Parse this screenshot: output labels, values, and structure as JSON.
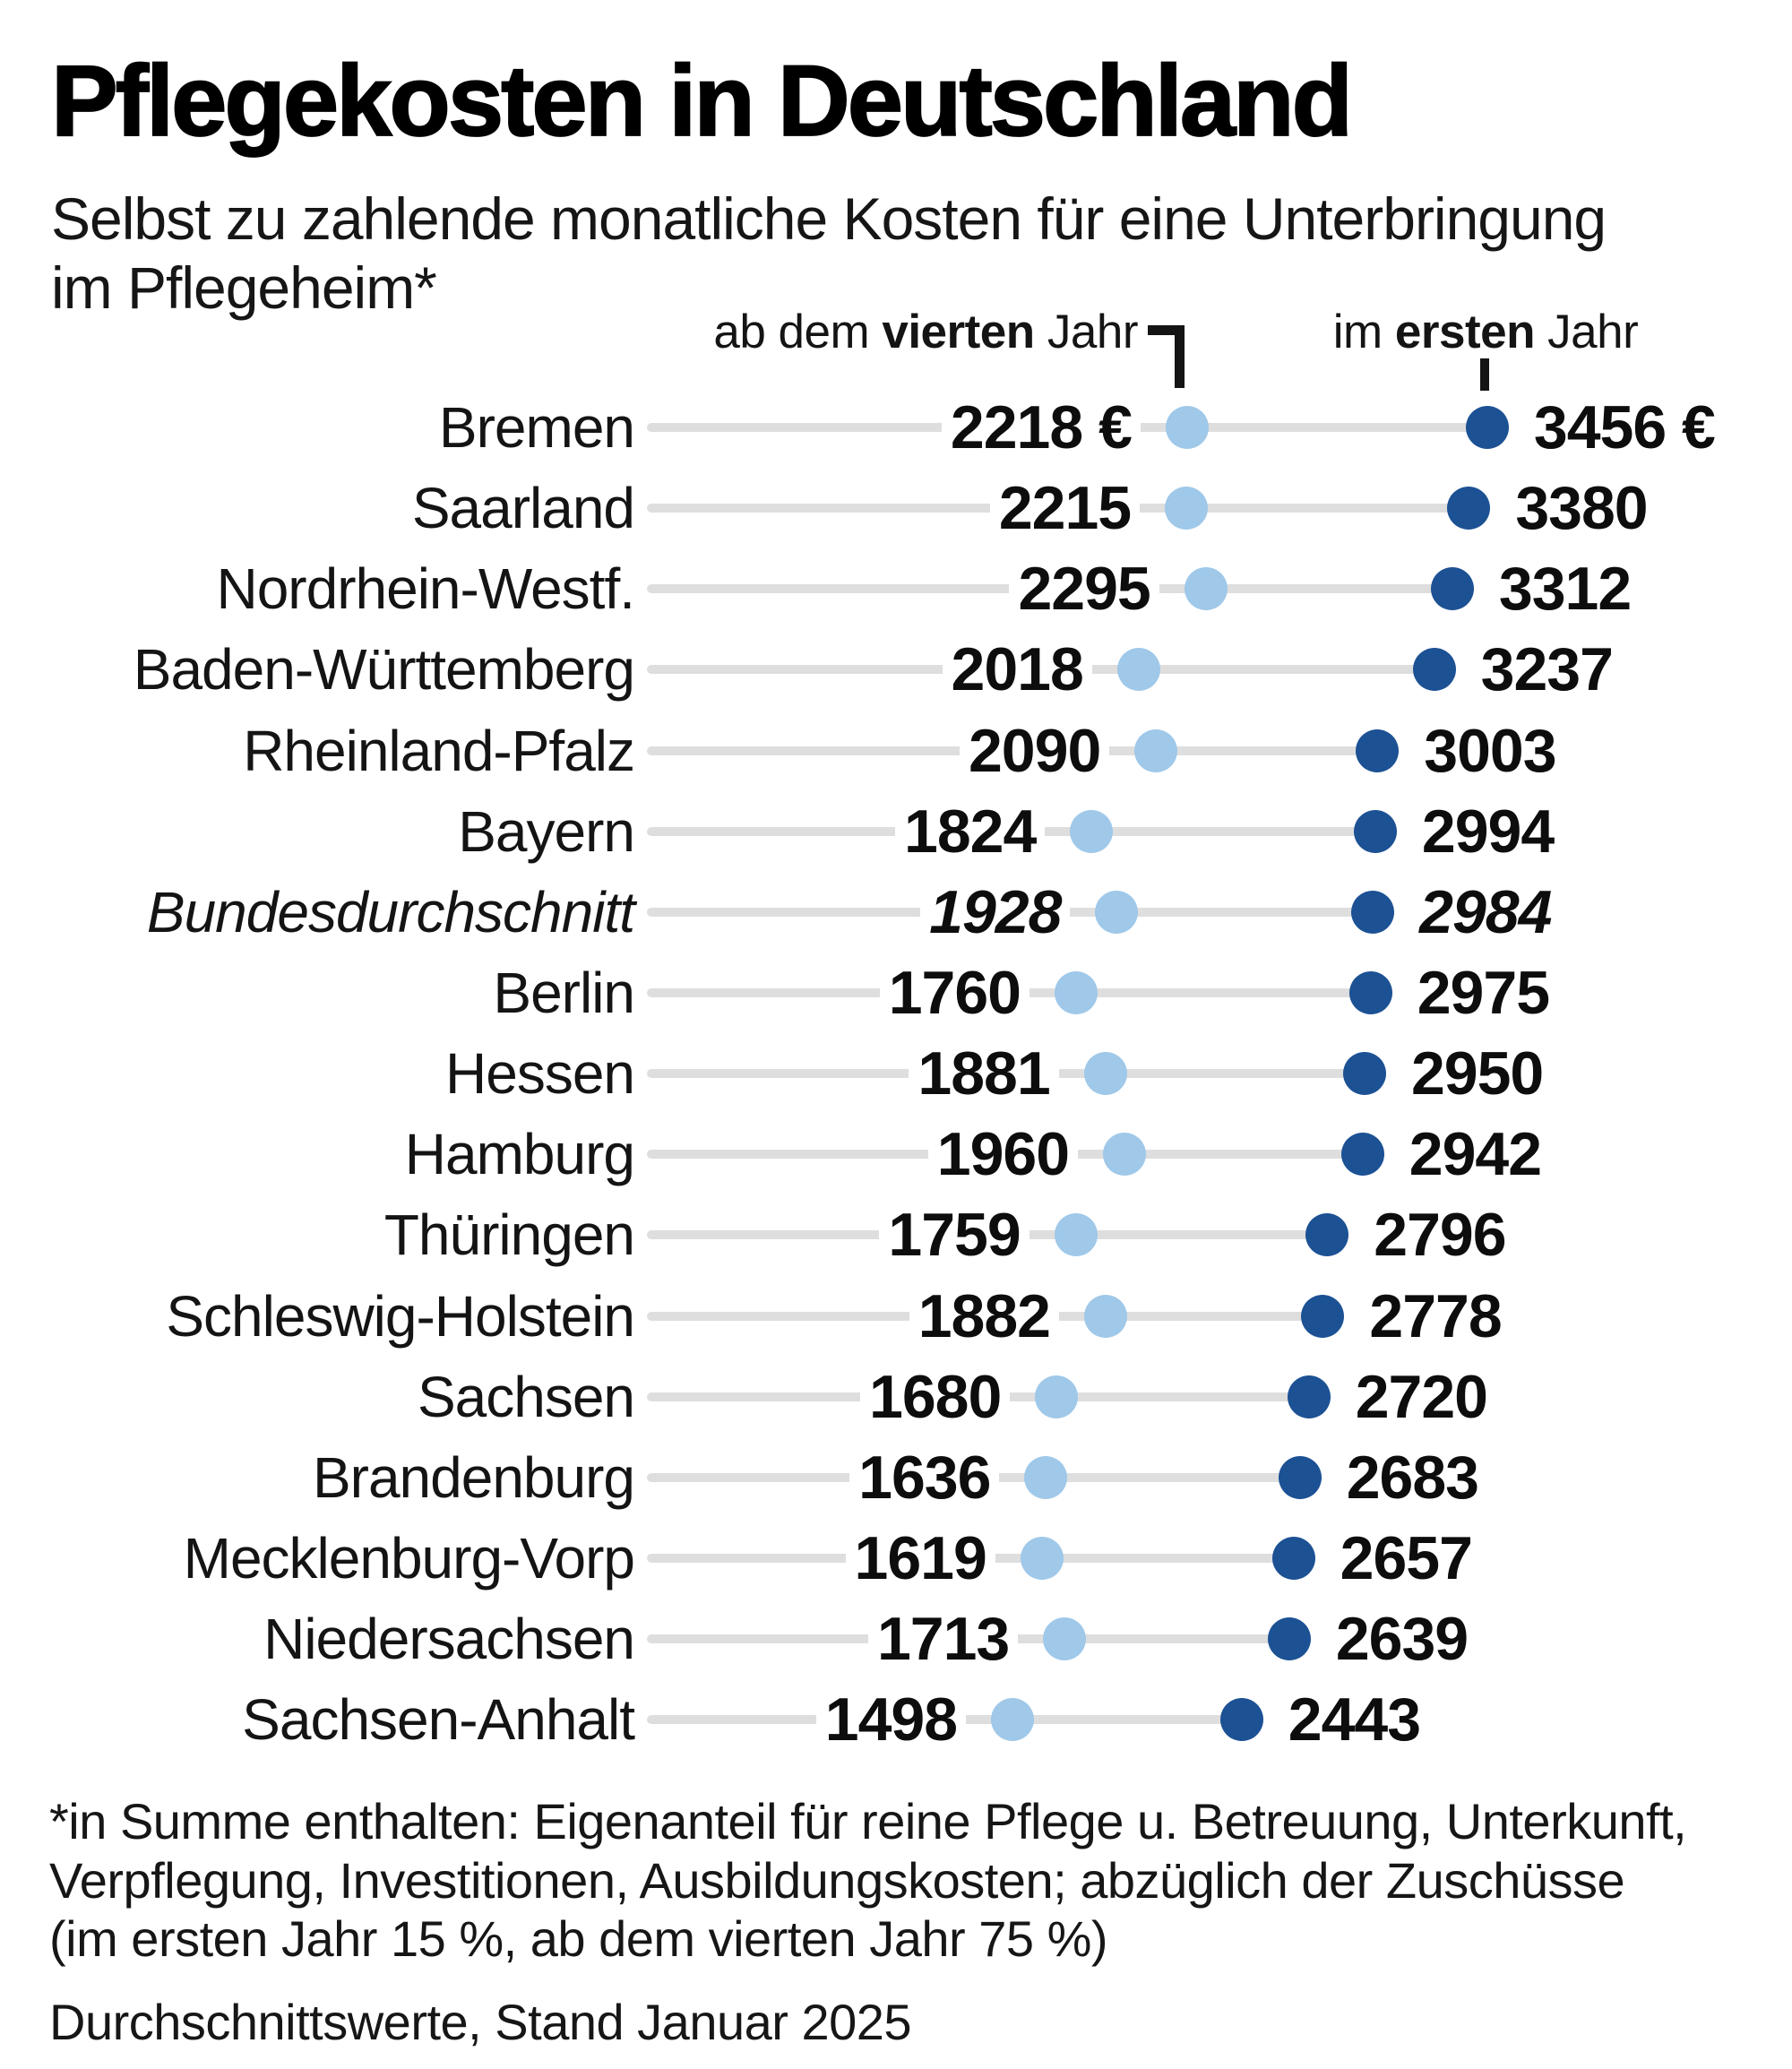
{
  "title": "Pflegekosten in Deutschland",
  "subtitle": "Selbst zu zahlende monatliche Kosten für eine Unterbringung\nim Pflegeheim*",
  "legend": {
    "year4": {
      "pre": "ab dem ",
      "bold": "vierten",
      "post": " Jahr"
    },
    "year1": {
      "pre": "im ",
      "bold": "ersten",
      "post": " Jahr"
    }
  },
  "footnote": "*in Summe enthalten: Eigenanteil für reine Pflege u. Betreuung, Unterkunft,\nVerpflegung, Investitionen, Ausbildungskosten; abzüglich der Zuschüsse\n(im ersten Jahr 15 %, ab dem vierten Jahr 75 %)",
  "source": "Durchschnittswerte, Stand Januar 2025",
  "colors": {
    "year4_dot": "#9fc8e9",
    "year1_dot": "#1c5194",
    "row_line": "#dedede",
    "text": "#141414"
  },
  "chart_data": {
    "type": "scatter",
    "subtype": "dumbbell-dot-plot",
    "title": "Pflegekosten in Deutschland",
    "xlabel": "Selbst zu zahlende monatliche Kosten (€)",
    "categories": [
      "Bremen",
      "Saarland",
      "Nordrhein-Westf.",
      "Baden-Württemberg",
      "Rheinland-Pfalz",
      "Bayern",
      "Bundesdurchschnitt",
      "Berlin",
      "Hessen",
      "Hamburg",
      "Thüringen",
      "Schleswig-Holstein",
      "Sachsen",
      "Brandenburg",
      "Mecklenburg-Vorp",
      "Niedersachsen",
      "Sachsen-Anhalt"
    ],
    "series": [
      {
        "name": "ab dem vierten Jahr",
        "color": "#9fc8e9",
        "values": [
          2218,
          2215,
          2295,
          2018,
          2090,
          1824,
          1928,
          1760,
          1881,
          1960,
          1759,
          1882,
          1680,
          1636,
          1619,
          1713,
          1498
        ]
      },
      {
        "name": "im ersten Jahr",
        "color": "#1c5194",
        "values": [
          3456,
          3380,
          3312,
          3237,
          3003,
          2994,
          2984,
          2975,
          2950,
          2942,
          2796,
          2778,
          2720,
          2683,
          2657,
          2639,
          2443
        ]
      }
    ],
    "unit": "€",
    "unit_label_shown_on": "first row only",
    "italic_category": "Bundesdurchschnitt",
    "xlim": [
      1400,
      3600
    ],
    "grid": false,
    "legend_position": "top"
  }
}
